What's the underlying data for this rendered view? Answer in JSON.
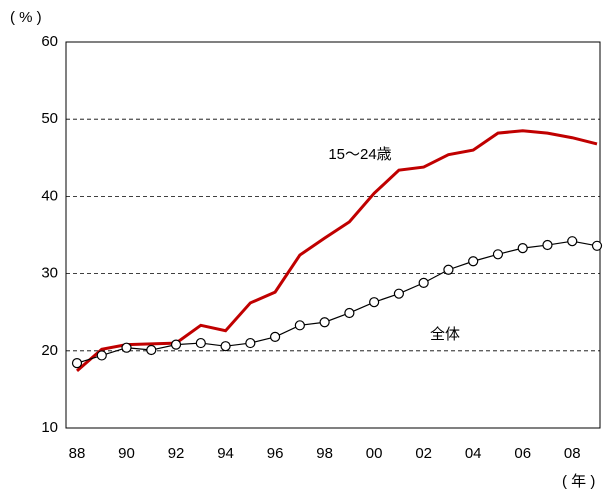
{
  "chart_data": {
    "type": "line",
    "y_axis_label": "( % )",
    "x_axis_label": "( 年 )",
    "categories": [
      "88",
      null,
      "90",
      null,
      "92",
      null,
      "94",
      null,
      "96",
      null,
      "98",
      null,
      "00",
      null,
      "02",
      null,
      "04",
      null,
      "06",
      null,
      "08",
      null
    ],
    "series": [
      {
        "name": "15～24歳",
        "color": "#c00000",
        "values": [
          17.4,
          20.2,
          20.8,
          20.9,
          21.0,
          23.3,
          22.6,
          26.2,
          27.6,
          32.4,
          34.6,
          36.7,
          40.4,
          43.4,
          43.8,
          45.4,
          46.0,
          48.2,
          48.5,
          48.2,
          47.6,
          46.8
        ]
      },
      {
        "name": "全体",
        "color": "#000000",
        "marker": "circle",
        "values": [
          18.4,
          19.4,
          20.4,
          20.1,
          20.8,
          21.0,
          20.6,
          21.0,
          21.8,
          23.3,
          23.7,
          24.9,
          26.3,
          27.4,
          28.8,
          30.5,
          31.6,
          32.5,
          33.3,
          33.7,
          34.2,
          33.6
        ]
      }
    ],
    "ylim": [
      10,
      60
    ],
    "yticks": [
      10,
      20,
      30,
      40,
      50,
      60
    ],
    "grid": true
  }
}
